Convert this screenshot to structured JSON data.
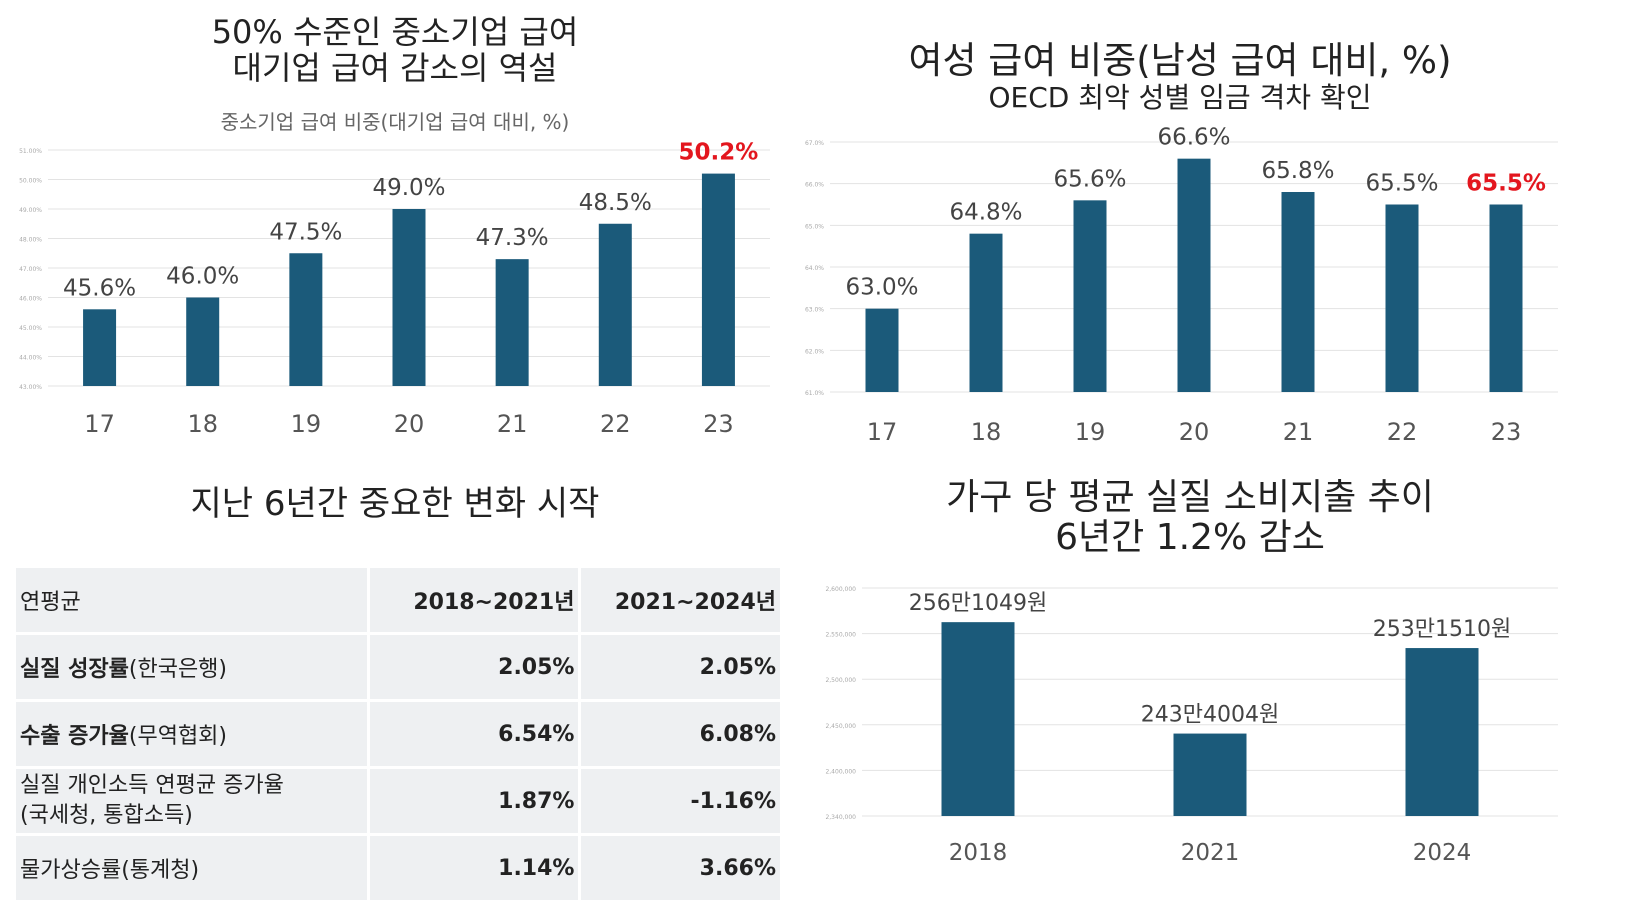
{
  "colors": {
    "bar": "#1b5a7a",
    "highlight": "#e3161e",
    "accent_blue": "#1aa7dd",
    "grid": "#e3e3e3"
  },
  "chart_data": [
    {
      "type": "bar",
      "title": "50% 수준인 중소기업 급여\n대기업 급여 감소의 역설",
      "subtitle": "중소기업 급여 비중(대기업 급여 대비, %)",
      "categories": [
        "17",
        "18",
        "19",
        "20",
        "21",
        "22",
        "23"
      ],
      "values": [
        45.6,
        46.0,
        47.5,
        49.0,
        47.3,
        48.5,
        50.2
      ],
      "data_labels": [
        "45.6%",
        "46.0%",
        "47.5%",
        "49.0%",
        "47.3%",
        "48.5%",
        "50.2%"
      ],
      "highlight_index": 6,
      "ylim": [
        43.0,
        51.0
      ],
      "yticks": [
        "43.00%",
        "44.00%",
        "45.00%",
        "46.00%",
        "47.00%",
        "48.00%",
        "49.00%",
        "50.00%",
        "51.00%"
      ],
      "grid": true
    },
    {
      "type": "bar",
      "title": "여성 급여 비중(남성 급여 대비, %)",
      "subtitle": "OECD 최악 성별 임금 격차 확인",
      "categories": [
        "17",
        "18",
        "19",
        "20",
        "21",
        "22",
        "23"
      ],
      "values": [
        63.0,
        64.8,
        65.6,
        66.6,
        65.8,
        65.5,
        65.5
      ],
      "data_labels": [
        "63.0%",
        "64.8%",
        "65.6%",
        "66.6%",
        "65.8%",
        "65.5%",
        "65.5%"
      ],
      "highlight_index": 6,
      "ylim": [
        61.0,
        67.0
      ],
      "yticks": [
        "61.0%",
        "62.0%",
        "63.0%",
        "64.0%",
        "65.0%",
        "66.0%",
        "67.0%"
      ],
      "grid": true
    },
    {
      "type": "bar",
      "title": "가구 당 평균 실질 소비지출 추이\n6년간 1.2% 감소",
      "categories": [
        "2018",
        "2021",
        "2024"
      ],
      "values": [
        2561049,
        2434004,
        2531510
      ],
      "data_labels": [
        "256만1049원",
        "243만4004원",
        "253만1510원"
      ],
      "ylim": [
        2340000,
        2600000
      ],
      "yticks": [
        "2,340,000",
        "2,400,000",
        "2,450,000",
        "2,500,000",
        "2,550,000",
        "2,600,000"
      ],
      "grid": true
    },
    {
      "type": "table",
      "title": "지난 6년간 중요한 변화 시작",
      "header": {
        "label": "연평균",
        "col1": "2018~2021년",
        "col2": "2021~2024년"
      },
      "rows": [
        {
          "label_bold": "실질 성장률",
          "label_rest": "(한국은행)",
          "v1": "2.05%",
          "v2": "2.05%"
        },
        {
          "label_bold": "수출 증가율",
          "label_rest": "(무역협회)",
          "v1": "6.54%",
          "v2": "6.08%"
        },
        {
          "label_line1": "실질 개인소득 연평균 증가율",
          "label_line2": "(국세청, 통합소득)",
          "v1": "1.87%",
          "v2": "-1.16%"
        },
        {
          "label_line1": "물가상승률(통계청)",
          "v1": "1.14%",
          "v2": "3.66%"
        }
      ]
    }
  ]
}
